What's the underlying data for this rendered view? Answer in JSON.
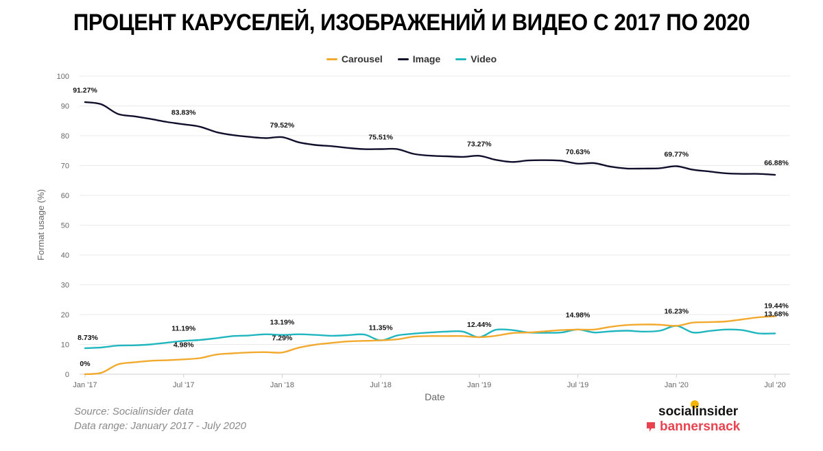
{
  "title": "ПРОЦЕНТ КАРУСЕЛЕЙ, ИЗОБРАЖЕНИЙ И ВИДЕО С 2017 ПО 2020",
  "footer": {
    "source": "Source: Socialinsider data",
    "range": "Data range: January 2017 - July 2020"
  },
  "brand": {
    "primary": "socialinsider",
    "secondary": "bannersnack"
  },
  "chart_data": {
    "type": "line",
    "xlabel": "Date",
    "ylabel": "Format usage (%)",
    "ylim": [
      0,
      100
    ],
    "yticks": [
      0,
      10,
      20,
      30,
      40,
      50,
      60,
      70,
      80,
      90,
      100
    ],
    "grid": true,
    "legend_position": "top-center",
    "x_tick_labels": [
      {
        "m": 0,
        "label": "Jan '17"
      },
      {
        "m": 6,
        "label": "Jul '17"
      },
      {
        "m": 12,
        "label": "Jan '18"
      },
      {
        "m": 18,
        "label": "Jul '18"
      },
      {
        "m": 24,
        "label": "Jan '19"
      },
      {
        "m": 30,
        "label": "Jul '19"
      },
      {
        "m": 36,
        "label": "Jan '20"
      },
      {
        "m": 42,
        "label": "Jul '20"
      }
    ],
    "x": [
      "2017-01",
      "2017-02",
      "2017-03",
      "2017-04",
      "2017-05",
      "2017-06",
      "2017-07",
      "2017-08",
      "2017-09",
      "2017-10",
      "2017-11",
      "2017-12",
      "2018-01",
      "2018-02",
      "2018-03",
      "2018-04",
      "2018-05",
      "2018-06",
      "2018-07",
      "2018-08",
      "2018-09",
      "2018-10",
      "2018-11",
      "2018-12",
      "2019-01",
      "2019-02",
      "2019-03",
      "2019-04",
      "2019-05",
      "2019-06",
      "2019-07",
      "2019-08",
      "2019-09",
      "2019-10",
      "2019-11",
      "2019-12",
      "2020-01",
      "2020-02",
      "2020-03",
      "2020-04",
      "2020-05",
      "2020-06",
      "2020-07"
    ],
    "series": [
      {
        "name": "Carousel",
        "color": "#f2a92e",
        "values": [
          0,
          0.5,
          3.3,
          4.0,
          4.5,
          4.7,
          4.98,
          5.4,
          6.6,
          7.0,
          7.3,
          7.4,
          7.29,
          8.9,
          9.9,
          10.5,
          11.0,
          11.2,
          11.35,
          11.7,
          12.6,
          12.8,
          12.8,
          12.8,
          12.44,
          12.9,
          13.8,
          14.0,
          14.4,
          14.8,
          14.98,
          15.0,
          15.9,
          16.5,
          16.7,
          16.6,
          16.23,
          17.3,
          17.5,
          17.7,
          18.4,
          19.1,
          19.44
        ],
        "labels": [
          {
            "m": 0,
            "text": "0%"
          },
          {
            "m": 6,
            "text": "4.98%"
          },
          {
            "m": 12,
            "text": "7.29%"
          },
          {
            "m": 30,
            "text": "14.98%"
          },
          {
            "m": 36,
            "text": "16.23%"
          },
          {
            "m": 42,
            "text": "19.44%"
          }
        ]
      },
      {
        "name": "Image",
        "color": "#0f0e2b",
        "values": [
          91.27,
          90.5,
          87.3,
          86.5,
          85.6,
          84.6,
          83.83,
          83.0,
          81.2,
          80.2,
          79.6,
          79.2,
          79.52,
          77.8,
          76.9,
          76.5,
          75.9,
          75.5,
          75.51,
          75.5,
          73.9,
          73.3,
          73.1,
          72.9,
          73.27,
          71.9,
          71.2,
          71.7,
          71.8,
          71.6,
          70.63,
          70.8,
          69.6,
          69.0,
          69.0,
          69.1,
          69.77,
          68.6,
          68.0,
          67.4,
          67.2,
          67.2,
          66.88
        ],
        "labels": [
          {
            "m": 0,
            "text": "91.27%"
          },
          {
            "m": 6,
            "text": "83.83%"
          },
          {
            "m": 12,
            "text": "79.52%"
          },
          {
            "m": 18,
            "text": "75.51%"
          },
          {
            "m": 24,
            "text": "73.27%"
          },
          {
            "m": 30,
            "text": "70.63%"
          },
          {
            "m": 36,
            "text": "69.77%"
          },
          {
            "m": 42,
            "text": "66.88%"
          }
        ]
      },
      {
        "name": "Video",
        "color": "#1fb6bf",
        "values": [
          8.73,
          9.0,
          9.6,
          9.7,
          10.0,
          10.6,
          11.19,
          11.5,
          12.1,
          12.8,
          13.0,
          13.4,
          13.19,
          13.4,
          13.2,
          12.9,
          13.1,
          13.3,
          11.35,
          13.0,
          13.6,
          14.0,
          14.3,
          14.3,
          12.44,
          14.9,
          14.8,
          14.0,
          13.9,
          14.0,
          14.98,
          14.0,
          14.4,
          14.6,
          14.3,
          14.6,
          16.23,
          14.0,
          14.5,
          15.0,
          14.8,
          13.7,
          13.68
        ],
        "labels": [
          {
            "m": 0,
            "text": "8.73%"
          },
          {
            "m": 6,
            "text": "11.19%"
          },
          {
            "m": 12,
            "text": "13.19%"
          },
          {
            "m": 18,
            "text": "11.35%"
          },
          {
            "m": 24,
            "text": "12.44%"
          },
          {
            "m": 42,
            "text": "13.68%"
          }
        ]
      }
    ]
  }
}
